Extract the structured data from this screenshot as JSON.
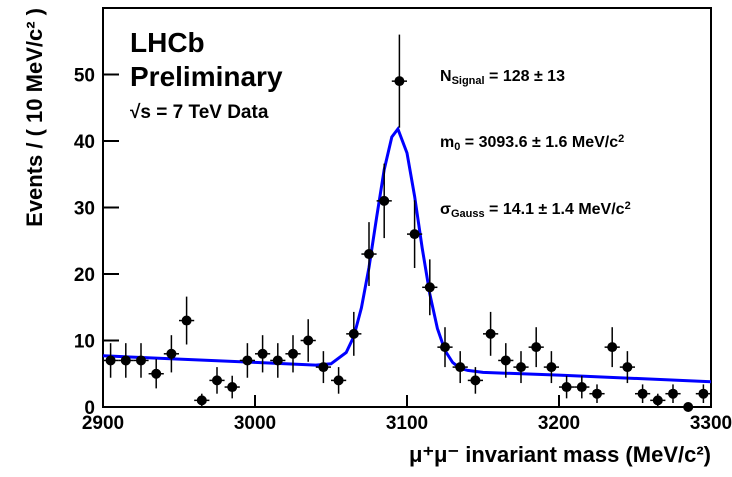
{
  "chart_data": {
    "type": "errorbar",
    "xlabel": "μ⁺μ⁻ invariant mass (MeV/c²)",
    "ylabel": "Events / ( 10 MeV/c² )",
    "texts": [
      "LHCb",
      "Preliminary",
      "√s = 7 TeV Data"
    ],
    "annotations": [
      {
        "parts": [
          {
            "t": "N"
          },
          {
            "t": "Signal",
            "sub": true
          },
          {
            "t": " = 128 ± 13"
          }
        ]
      },
      {
        "parts": [
          {
            "t": "m"
          },
          {
            "t": "0",
            "sub": true
          },
          {
            "t": " = 3093.6 ± 1.6 MeV/c"
          },
          {
            "t": "2",
            "sup": true
          }
        ]
      },
      {
        "parts": [
          {
            "t": "σ"
          },
          {
            "t": "Gauss",
            "sub": true
          },
          {
            "t": " = 14.1 ± 1.4 MeV/c"
          },
          {
            "t": "2",
            "sup": true
          }
        ]
      }
    ],
    "x": [
      2905,
      2915,
      2925,
      2935,
      2945,
      2955,
      2965,
      2975,
      2985,
      2995,
      3005,
      3015,
      3025,
      3035,
      3045,
      3055,
      3065,
      3075,
      3085,
      3095,
      3105,
      3115,
      3125,
      3135,
      3145,
      3155,
      3165,
      3175,
      3185,
      3195,
      3205,
      3215,
      3225,
      3235,
      3245,
      3255,
      3265,
      3275,
      3285,
      3295
    ],
    "values": [
      7,
      7,
      7,
      5,
      8,
      13,
      1,
      4,
      3,
      7,
      8,
      7,
      8,
      10,
      6,
      4,
      11,
      23,
      31,
      49,
      26,
      18,
      9,
      6,
      4,
      11,
      7,
      6,
      9,
      6,
      3,
      3,
      2,
      9,
      6,
      2,
      1,
      2,
      0,
      2
    ],
    "errors": [
      2.6,
      2.6,
      2.6,
      2.2,
      2.8,
      3.6,
      1,
      2,
      1.7,
      2.6,
      2.8,
      2.6,
      2.8,
      3.2,
      2.4,
      2,
      3.3,
      4.8,
      5.6,
      7,
      5.1,
      4.2,
      3,
      2.4,
      2,
      3.3,
      2.6,
      2.4,
      3,
      2.4,
      1.7,
      1.7,
      1.4,
      3,
      2.4,
      1.4,
      1,
      1.4,
      0,
      1.4
    ],
    "x_error": 5,
    "color": "#000000",
    "fit": {
      "color": "#0000ff",
      "x": [
        2900,
        3000,
        3040,
        3050,
        3060,
        3065,
        3070,
        3075,
        3080,
        3085,
        3090,
        3094,
        3100,
        3105,
        3110,
        3115,
        3120,
        3125,
        3130,
        3135,
        3140,
        3150,
        3200,
        3300
      ],
      "values": [
        7.7,
        6.7,
        6.3,
        6.5,
        8.2,
        10.6,
        14.9,
        21.0,
        28.5,
        35.7,
        40.6,
        41.8,
        38.2,
        31.7,
        23.9,
        17.0,
        11.8,
        8.5,
        6.7,
        5.8,
        5.5,
        5.2,
        4.8,
        3.8
      ]
    },
    "xlim": [
      2900,
      3300
    ],
    "xticks": [
      2900,
      3000,
      3100,
      3200,
      3300
    ],
    "ylim": [
      0,
      60
    ],
    "yticks": [
      0,
      10,
      20,
      30,
      40,
      50
    ]
  }
}
